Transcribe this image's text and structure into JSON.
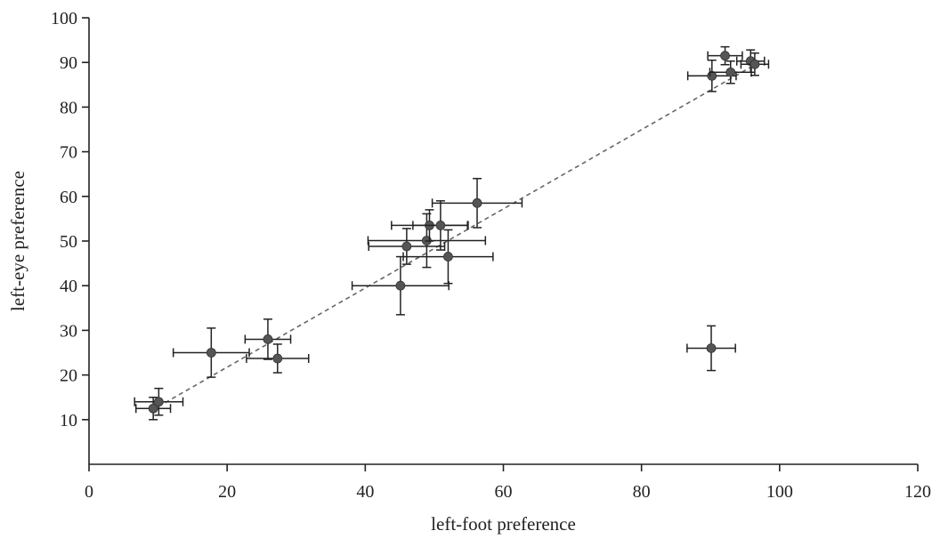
{
  "chart_data": {
    "type": "scatter",
    "title": "",
    "xlabel": "left-foot preference",
    "ylabel": "left-eye preference",
    "xlim": [
      0,
      120
    ],
    "ylim": [
      0,
      100
    ],
    "xticks": [
      0,
      20,
      40,
      60,
      80,
      100,
      120
    ],
    "yticks": [
      10,
      20,
      30,
      40,
      50,
      60,
      70,
      80,
      90,
      100
    ],
    "grid": false,
    "legend": "none",
    "trendline": {
      "style": "dashed",
      "x": [
        9,
        97
      ],
      "y": [
        12,
        90
      ]
    },
    "points": [
      {
        "x": 9.3,
        "y": 12.5,
        "xerr": 2.5,
        "yerr": 2.5
      },
      {
        "x": 10.1,
        "y": 14.0,
        "xerr": 3.5,
        "yerr": 3.0
      },
      {
        "x": 17.7,
        "y": 25.0,
        "xerr": 5.5,
        "yerr": 5.5
      },
      {
        "x": 25.9,
        "y": 28.0,
        "xerr": 3.3,
        "yerr": 4.5
      },
      {
        "x": 27.3,
        "y": 23.7,
        "xerr": 4.5,
        "yerr": 3.2
      },
      {
        "x": 45.1,
        "y": 40.0,
        "xerr": 7.0,
        "yerr": 6.5
      },
      {
        "x": 46.0,
        "y": 48.8,
        "xerr": 5.5,
        "yerr": 4.0
      },
      {
        "x": 48.9,
        "y": 50.1,
        "xerr": 8.5,
        "yerr": 6.0
      },
      {
        "x": 49.3,
        "y": 53.5,
        "xerr": 5.5,
        "yerr": 3.5
      },
      {
        "x": 50.9,
        "y": 53.5,
        "xerr": 4.0,
        "yerr": 5.5
      },
      {
        "x": 52.0,
        "y": 46.5,
        "xerr": 6.5,
        "yerr": 6.0
      },
      {
        "x": 56.2,
        "y": 58.5,
        "xerr": 6.5,
        "yerr": 5.5
      },
      {
        "x": 90.2,
        "y": 87.0,
        "xerr": 3.5,
        "yerr": 3.5
      },
      {
        "x": 92.1,
        "y": 91.5,
        "xerr": 2.5,
        "yerr": 2.0
      },
      {
        "x": 92.9,
        "y": 87.8,
        "xerr": 3.0,
        "yerr": 2.5
      },
      {
        "x": 95.8,
        "y": 90.3,
        "xerr": 2.0,
        "yerr": 2.5
      },
      {
        "x": 96.4,
        "y": 89.6,
        "xerr": 2.0,
        "yerr": 2.5
      },
      {
        "x": 90.1,
        "y": 26.0,
        "xerr": 3.5,
        "yerr": 5.0
      }
    ]
  }
}
